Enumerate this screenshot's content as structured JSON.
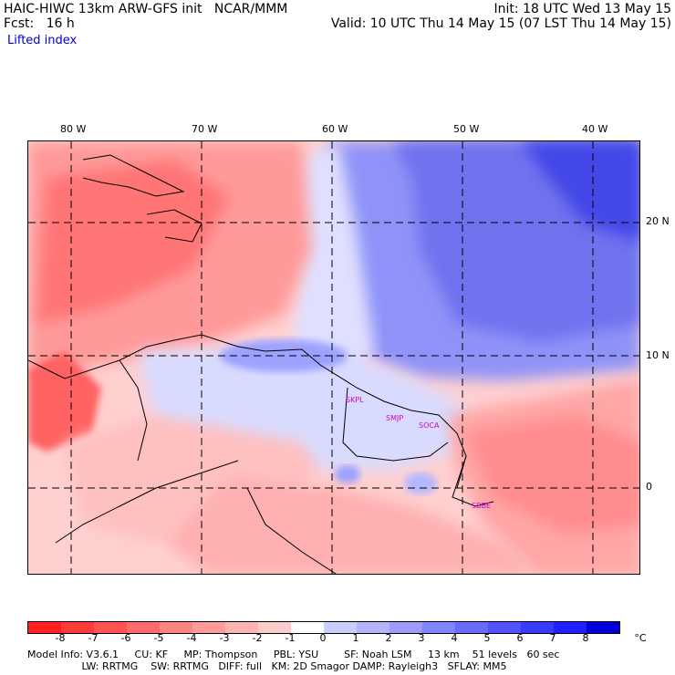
{
  "header": {
    "left_line1": "HAIC-HIWC 13km ARW-GFS init   NCAR/MMM",
    "left_line2": "Fcst:   16 h",
    "right_line1": "Init: 18 UTC Wed 13 May 15",
    "right_line2": "Valid: 10 UTC Thu 14 May 15 (07 LST Thu 14 May 15)",
    "variable": "Lifted index"
  },
  "axes": {
    "lon_labels": [
      "80 W",
      "70 W",
      "60 W",
      "50 W",
      "40 W"
    ],
    "lat_labels": [
      "20 N",
      "10 N",
      "0"
    ]
  },
  "stations": [
    "SKPL",
    "SMJP",
    "SOCA",
    "SBBE"
  ],
  "legend": {
    "ticks": [
      "-8",
      "-7",
      "-6",
      "-5",
      "-4",
      "-3",
      "-2",
      "-1",
      "0",
      "1",
      "2",
      "3",
      "4",
      "5",
      "6",
      "7",
      "8"
    ],
    "unit": "°C",
    "colors": [
      "#ff2020",
      "#ff3a3a",
      "#ff5252",
      "#ff6a6a",
      "#ff8484",
      "#ff9c9c",
      "#ffb4b4",
      "#ffcccc",
      "#ffffff",
      "#ccccff",
      "#b4b4ff",
      "#9c9cff",
      "#8484ff",
      "#6a6aff",
      "#5252ff",
      "#3a3aff",
      "#2020ff",
      "#0000dd"
    ]
  },
  "footer": {
    "line1": "Model Info: V3.6.1     CU: KF     MP: Thompson     PBL: YSU        SF: Noah LSM     13 km    51 levels   60 sec",
    "line2": "                 LW: RRTMG    SW: RRTMG   DIFF: full   KM: 2D Smagor DAMP: Rayleigh3   SFLAY: MM5"
  }
}
